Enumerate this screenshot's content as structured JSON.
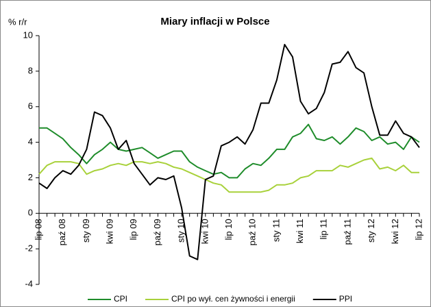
{
  "chart_data": {
    "type": "line",
    "title": "Miary inflacji w Polsce",
    "ylabel": "% r/r",
    "categories": [
      "lip 08",
      null,
      null,
      "paź 08",
      null,
      null,
      "sty 09",
      null,
      null,
      "kwi 09",
      null,
      null,
      "lip 09",
      null,
      null,
      "paź 09",
      null,
      null,
      "sty 10",
      null,
      null,
      "kwi 10",
      null,
      null,
      "lip 10",
      null,
      null,
      "paź 10",
      null,
      null,
      "sty 11",
      null,
      null,
      "kwi 11",
      null,
      null,
      "lip 11",
      null,
      null,
      "paź 11",
      null,
      null,
      "sty 12",
      null,
      null,
      "kwi 12",
      null,
      null,
      "lip 12"
    ],
    "series": [
      {
        "name": "CPI",
        "color": "#1e8c2a",
        "values": [
          4.8,
          4.8,
          4.5,
          4.2,
          3.7,
          3.3,
          2.8,
          3.3,
          3.6,
          4.0,
          3.6,
          3.5,
          3.6,
          3.7,
          3.4,
          3.1,
          3.3,
          3.5,
          3.5,
          2.9,
          2.6,
          2.4,
          2.2,
          2.3,
          2.0,
          2.0,
          2.5,
          2.8,
          2.7,
          3.1,
          3.6,
          3.6,
          4.3,
          4.5,
          5.0,
          4.2,
          4.1,
          4.3,
          3.9,
          4.3,
          4.8,
          4.6,
          4.1,
          4.3,
          3.9,
          4.0,
          3.6,
          4.3,
          4.0
        ]
      },
      {
        "name": "CPI po wył. cen żywności i energii",
        "color": "#a8d13a",
        "values": [
          2.2,
          2.7,
          2.9,
          2.9,
          2.9,
          2.8,
          2.2,
          2.4,
          2.5,
          2.7,
          2.8,
          2.7,
          2.9,
          2.9,
          2.8,
          2.9,
          2.8,
          2.6,
          2.5,
          2.3,
          2.1,
          1.9,
          1.7,
          1.6,
          1.2,
          1.2,
          1.2,
          1.2,
          1.2,
          1.3,
          1.6,
          1.6,
          1.7,
          2.0,
          2.1,
          2.4,
          2.4,
          2.4,
          2.7,
          2.6,
          2.8,
          3.0,
          3.1,
          2.5,
          2.6,
          2.4,
          2.7,
          2.3,
          2.3
        ]
      },
      {
        "name": "PPI",
        "color": "#000000",
        "values": [
          1.7,
          1.4,
          2.0,
          2.4,
          2.2,
          2.7,
          3.6,
          5.7,
          5.5,
          4.8,
          3.6,
          4.1,
          2.8,
          2.2,
          1.6,
          2.0,
          1.9,
          2.1,
          0.3,
          -2.4,
          -2.6,
          1.9,
          2.1,
          3.8,
          4.0,
          4.3,
          3.9,
          4.7,
          6.2,
          6.2,
          7.5,
          9.5,
          8.8,
          6.3,
          5.6,
          5.9,
          6.8,
          8.4,
          8.5,
          9.1,
          8.2,
          7.9,
          6.0,
          4.4,
          4.4,
          5.2,
          4.5,
          4.3,
          3.7
        ]
      }
    ],
    "ylim": [
      -4,
      10
    ],
    "yticks": [
      -4,
      -2,
      0,
      2,
      4,
      6,
      8,
      10
    ],
    "legend": "bottom"
  }
}
